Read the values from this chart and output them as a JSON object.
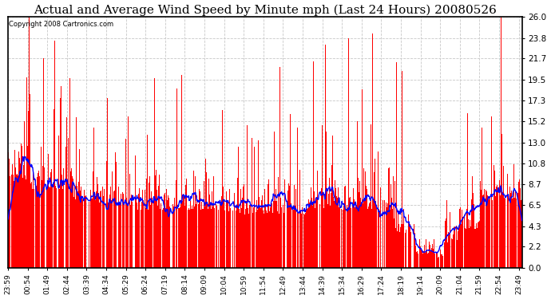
{
  "title": "Actual and Average Wind Speed by Minute mph (Last 24 Hours) 20080526",
  "copyright": "Copyright 2008 Cartronics.com",
  "yticks": [
    0.0,
    2.2,
    4.3,
    6.5,
    8.7,
    10.8,
    13.0,
    15.2,
    17.3,
    19.5,
    21.7,
    23.8,
    26.0
  ],
  "ymin": 0.0,
  "ymax": 26.0,
  "bar_color": "#FF0000",
  "line_color": "#0000FF",
  "background_color": "#FFFFFF",
  "grid_color": "#C8C8C8",
  "title_fontsize": 11,
  "n_minutes": 1440,
  "xtick_step": 55,
  "avg_window": 20,
  "figsize": [
    6.9,
    3.75
  ],
  "dpi": 100,
  "xtick_labels": [
    "23:59",
    "00:54",
    "01:49",
    "02:44",
    "03:39",
    "04:34",
    "05:29",
    "06:24",
    "07:19",
    "08:14",
    "09:09",
    "10:04",
    "10:59",
    "11:54",
    "12:49",
    "13:44",
    "14:39",
    "15:34",
    "16:29",
    "17:24",
    "18:19",
    "19:14",
    "20:09",
    "21:04",
    "21:59",
    "22:54",
    "23:49"
  ]
}
